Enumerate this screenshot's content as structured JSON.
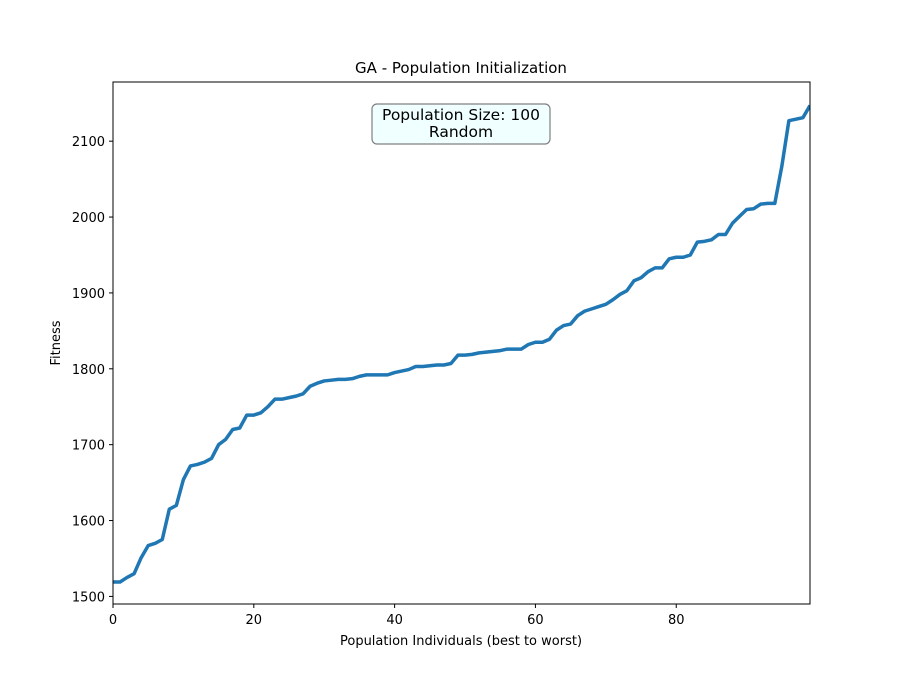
{
  "chart_data": {
    "type": "line",
    "title": "GA - Population Initialization",
    "xlabel": "Population Individuals (best to worst)",
    "ylabel": "Fitness",
    "xlim": [
      0,
      99
    ],
    "ylim": [
      1490,
      2178
    ],
    "xticks": [
      0,
      20,
      40,
      60,
      80
    ],
    "yticks": [
      1500,
      1600,
      1700,
      1800,
      1900,
      2000,
      2100
    ],
    "grid": false,
    "line_color": "#1f77b4",
    "annotation": {
      "lines": [
        "Population Size: 100",
        "Random"
      ],
      "position": "top-center",
      "box_color": "#f0ffff"
    },
    "series": [
      {
        "values": [
          1519,
          1519,
          1525,
          1530,
          1551,
          1567,
          1570,
          1575,
          1615,
          1620,
          1654,
          1672,
          1674,
          1677,
          1682,
          1700,
          1707,
          1720,
          1722,
          1739,
          1739,
          1742,
          1750,
          1760,
          1760,
          1762,
          1764,
          1767,
          1777,
          1781,
          1784,
          1785,
          1786,
          1786,
          1787,
          1790,
          1792,
          1792,
          1792,
          1792,
          1795,
          1797,
          1799,
          1803,
          1803,
          1804,
          1805,
          1805,
          1807,
          1818,
          1818,
          1819,
          1821,
          1822,
          1823,
          1824,
          1826,
          1826,
          1826,
          1832,
          1835,
          1835,
          1839,
          1851,
          1857,
          1859,
          1870,
          1876,
          1879,
          1882,
          1885,
          1891,
          1898,
          1903,
          1916,
          1920,
          1928,
          1933,
          1933,
          1945,
          1947,
          1947,
          1950,
          1967,
          1968,
          1970,
          1977,
          1977,
          1992,
          2001,
          2010,
          2011,
          2017,
          2018,
          2018,
          2067,
          2127,
          2129,
          2131,
          2147
        ]
      }
    ]
  }
}
